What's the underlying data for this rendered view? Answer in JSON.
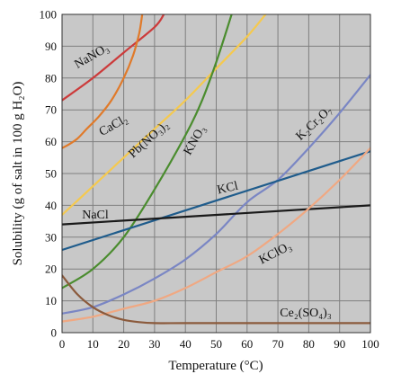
{
  "chart_data": {
    "type": "line",
    "title": "",
    "xlabel": "Temperature (°C)",
    "ylabel": "Solubility (g of salt in 100 g H₂O)",
    "xlim": [
      0,
      100
    ],
    "ylim": [
      0,
      100
    ],
    "xticks": [
      "0",
      "10",
      "20",
      "30",
      "40",
      "50",
      "60",
      "70",
      "80",
      "90",
      "100"
    ],
    "yticks": [
      "0",
      "10",
      "20",
      "30",
      "40",
      "50",
      "60",
      "70",
      "80",
      "90",
      "100"
    ],
    "grid": true,
    "series": [
      {
        "name": "NaNO3",
        "label_text": "NaNO₃",
        "color": "#cc3b3b",
        "points": [
          [
            0,
            73
          ],
          [
            10,
            80
          ],
          [
            20,
            88
          ],
          [
            30,
            96
          ],
          [
            33,
            100
          ]
        ]
      },
      {
        "name": "CaCl2",
        "label_text": "CaCl₂",
        "color": "#e07a2a",
        "points": [
          [
            0,
            58
          ],
          [
            2,
            59
          ],
          [
            5,
            61
          ],
          [
            8,
            64
          ],
          [
            12,
            68
          ],
          [
            16,
            73
          ],
          [
            20,
            80
          ],
          [
            23,
            87
          ],
          [
            25,
            94
          ],
          [
            26,
            100
          ]
        ]
      },
      {
        "name": "Pb(NO3)2",
        "label_text": "Pb(NO₃)₂",
        "color": "#f5c94e",
        "points": [
          [
            0,
            37
          ],
          [
            10,
            46
          ],
          [
            20,
            55
          ],
          [
            30,
            64
          ],
          [
            40,
            73
          ],
          [
            50,
            83
          ],
          [
            60,
            93
          ],
          [
            66,
            100
          ]
        ]
      },
      {
        "name": "KNO3",
        "label_text": "KNO₃",
        "color": "#4a8c2e",
        "points": [
          [
            0,
            14
          ],
          [
            10,
            20
          ],
          [
            20,
            30
          ],
          [
            30,
            45
          ],
          [
            40,
            62
          ],
          [
            45,
            72
          ],
          [
            50,
            85
          ],
          [
            55,
            100
          ]
        ]
      },
      {
        "name": "K2Cr2O7",
        "label_text": "K₂Cr₂O₇",
        "color": "#7a86c4",
        "points": [
          [
            0,
            6
          ],
          [
            10,
            8
          ],
          [
            20,
            12
          ],
          [
            30,
            17
          ],
          [
            40,
            23
          ],
          [
            50,
            31
          ],
          [
            60,
            41
          ],
          [
            70,
            48
          ],
          [
            80,
            58
          ],
          [
            90,
            69
          ],
          [
            100,
            81
          ]
        ]
      },
      {
        "name": "KCl",
        "label_text": "KCl",
        "color": "#1f5c8c",
        "points": [
          [
            0,
            26
          ],
          [
            100,
            57
          ]
        ]
      },
      {
        "name": "NaCl",
        "label_text": "NaCl",
        "color": "#1a1a1a",
        "points": [
          [
            0,
            34
          ],
          [
            100,
            40
          ]
        ]
      },
      {
        "name": "KClO3",
        "label_text": "KClO₃",
        "color": "#f0a882",
        "points": [
          [
            0,
            3.5
          ],
          [
            10,
            5
          ],
          [
            20,
            7.5
          ],
          [
            30,
            10
          ],
          [
            40,
            14
          ],
          [
            50,
            19
          ],
          [
            60,
            24
          ],
          [
            70,
            31
          ],
          [
            80,
            39
          ],
          [
            90,
            48
          ],
          [
            100,
            58
          ]
        ]
      },
      {
        "name": "Ce2(SO4)3",
        "label_text": "Ce₂(SO₄)₃",
        "color": "#8b5a3c",
        "points": [
          [
            0,
            18
          ],
          [
            5,
            12
          ],
          [
            10,
            8
          ],
          [
            15,
            5.5
          ],
          [
            20,
            4
          ],
          [
            25,
            3.3
          ],
          [
            30,
            3
          ],
          [
            40,
            3
          ],
          [
            60,
            3
          ],
          [
            80,
            3
          ],
          [
            100,
            3
          ]
        ]
      }
    ]
  }
}
